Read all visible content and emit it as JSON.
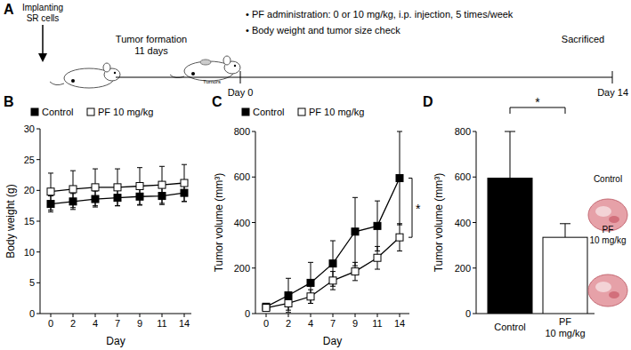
{
  "panels": [
    "A",
    "B",
    "C",
    "D"
  ],
  "schematic": {
    "implant": [
      "Implanting",
      "SR cells"
    ],
    "formation": [
      "Tumor formation",
      "11 days"
    ],
    "tumors": "Tumors",
    "treatment": [
      "• PF administration: 0 or 10 mg/kg,  i.p. injection, 5 times/week",
      "• Body weight and tumor size check"
    ],
    "end": "Sacrificed",
    "days": [
      "Day 0",
      "Day 14"
    ]
  },
  "chart_data": [
    {
      "type": "line",
      "x_label": "Day",
      "y_label": "Body weight (g)",
      "categories": [
        "0",
        "2",
        "4",
        "7",
        "9",
        "11",
        "14"
      ],
      "series": [
        {
          "name": "Control",
          "color": "#000000",
          "marker": "square",
          "values": [
            17.8,
            18.2,
            18.6,
            18.8,
            19.0,
            19.1,
            19.6
          ],
          "errors": [
            1.3,
            1.3,
            1.3,
            1.3,
            1.4,
            1.4,
            1.4
          ]
        },
        {
          "name": "PF 10 mg/kg",
          "color": "#ffffff",
          "marker": "square",
          "values": [
            19.8,
            20.2,
            20.5,
            20.5,
            20.7,
            20.9,
            21.2
          ],
          "errors": [
            3.0,
            3.0,
            3.0,
            3.0,
            3.0,
            3.0,
            3.0
          ]
        }
      ],
      "ylim": [
        0,
        30
      ],
      "yticks": [
        0,
        5,
        10,
        15,
        20,
        25,
        30
      ]
    },
    {
      "type": "line",
      "x_label": "Day",
      "y_label": "Tumor volume (mm³)",
      "categories": [
        "0",
        "2",
        "4",
        "7",
        "9",
        "11",
        "14"
      ],
      "series": [
        {
          "name": "Control",
          "color": "#000000",
          "marker": "square",
          "values": [
            30,
            80,
            135,
            220,
            360,
            385,
            595
          ],
          "errors": [
            10,
            75,
            90,
            100,
            150,
            110,
            205
          ]
        },
        {
          "name": "PF 10 mg/kg",
          "color": "#ffffff",
          "marker": "square",
          "values": [
            25,
            45,
            75,
            145,
            185,
            245,
            335
          ],
          "errors": [
            8,
            30,
            30,
            40,
            40,
            50,
            60
          ]
        }
      ],
      "ylim": [
        0,
        800
      ],
      "yticks": [
        0,
        200,
        400,
        600,
        800
      ],
      "annotations": [
        "*"
      ]
    },
    {
      "type": "bar",
      "y_label": "Tumor volume (mm³)",
      "categories": [
        "Control",
        "PF 10 mg/kg"
      ],
      "values": [
        595,
        335
      ],
      "errors": [
        205,
        60
      ],
      "colors": [
        "#000000",
        "#ffffff"
      ],
      "ylim": [
        0,
        800
      ],
      "yticks": [
        0,
        200,
        400,
        600,
        800
      ],
      "annotations": [
        "*"
      ],
      "image_labels": [
        "Control",
        "PF 10 mg/kg"
      ]
    }
  ]
}
